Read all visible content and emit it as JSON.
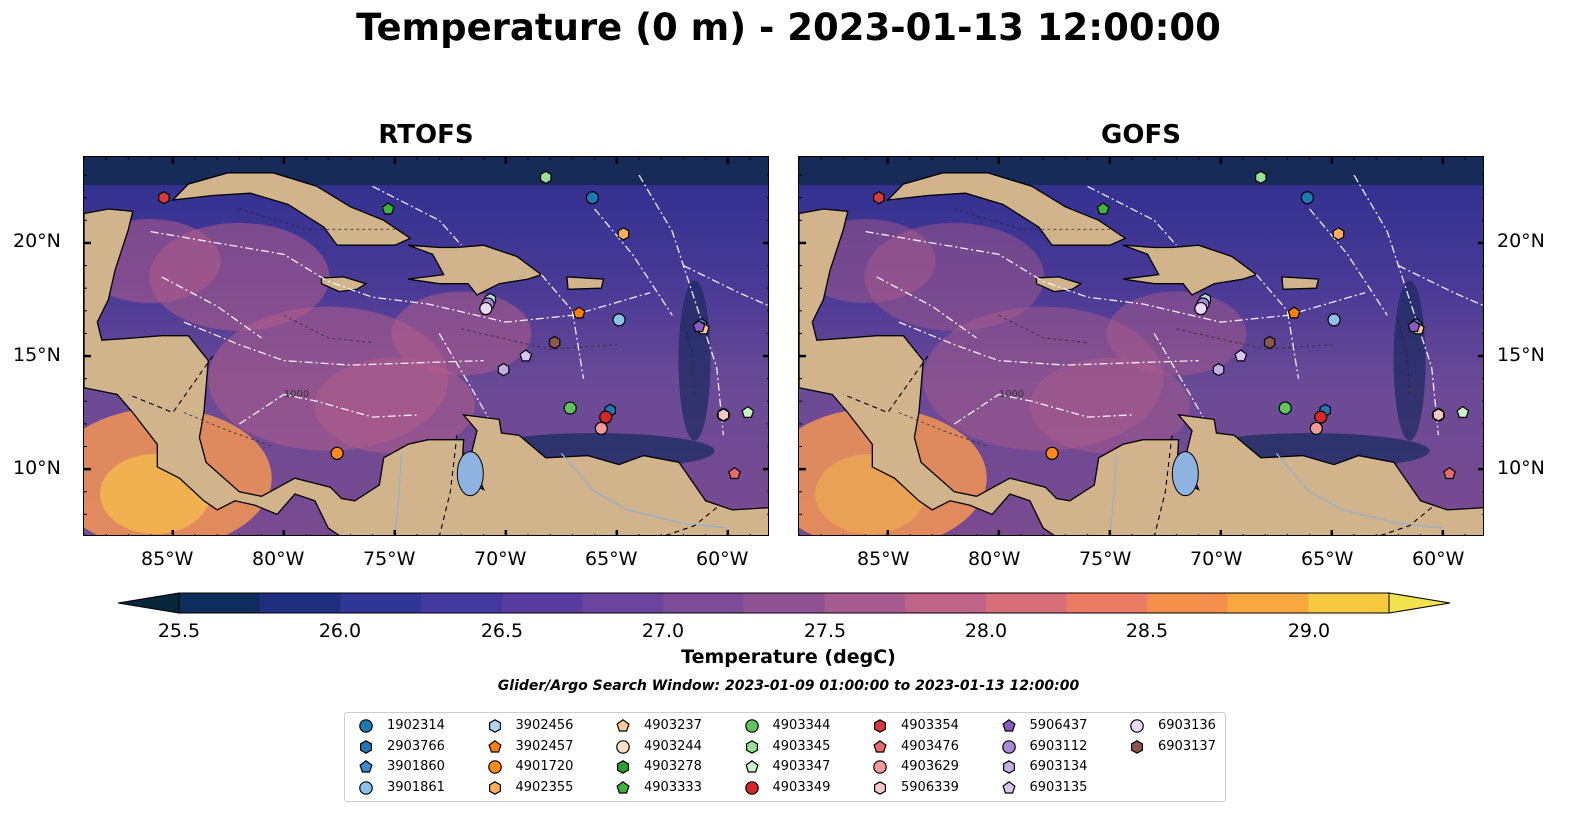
{
  "title": "Temperature (0 m) - 2023-01-13 12:00:00",
  "panels": [
    {
      "title": "RTOFS"
    },
    {
      "title": "GOFS"
    }
  ],
  "lon_ticks": [
    "85°W",
    "80°W",
    "75°W",
    "70°W",
    "65°W",
    "60°W"
  ],
  "lat_ticks": [
    "20°N",
    "15°N",
    "10°N"
  ],
  "contour_labels": [
    "1000"
  ],
  "colorbar": {
    "label": "Temperature (degC)",
    "ticks": [
      "25.5",
      "26.0",
      "26.5",
      "27.0",
      "27.5",
      "28.0",
      "28.5",
      "29.0"
    ],
    "min": 25.5,
    "max": 29.0,
    "extend": "both",
    "colors": [
      "#06263a",
      "#0f2d5c",
      "#1f2f7e",
      "#2f3696",
      "#43399f",
      "#563d9f",
      "#6a449d",
      "#7c4c98",
      "#8f5393",
      "#a55b8e",
      "#bd6487",
      "#d66f79",
      "#ea7c63",
      "#f58f4c",
      "#f9a73f",
      "#f7c940",
      "#f2e24c"
    ]
  },
  "search_window": "Glider/Argo Search Window: 2023-01-09 01:00:00 to 2023-01-13 12:00:00",
  "legend": [
    {
      "id": "1902314",
      "color": "#1f77b4",
      "marker": "circle"
    },
    {
      "id": "2903766",
      "color": "#1f77b4",
      "marker": "hexagon"
    },
    {
      "id": "3901860",
      "color": "#3a8ad0",
      "marker": "pentagon"
    },
    {
      "id": "3901861",
      "color": "#8ec1ea",
      "marker": "circle"
    },
    {
      "id": "3902456",
      "color": "#aed6f5",
      "marker": "hexagon"
    },
    {
      "id": "3902457",
      "color": "#ff7f0e",
      "marker": "pentagon"
    },
    {
      "id": "4901720",
      "color": "#ff8c1a",
      "marker": "circle"
    },
    {
      "id": "4902355",
      "color": "#ffae5c",
      "marker": "hexagon"
    },
    {
      "id": "4903237",
      "color": "#ffc89a",
      "marker": "pentagon"
    },
    {
      "id": "4903244",
      "color": "#ffe2c6",
      "marker": "circle"
    },
    {
      "id": "4903278",
      "color": "#2ca02c",
      "marker": "hexagon"
    },
    {
      "id": "4903333",
      "color": "#3cb53c",
      "marker": "pentagon"
    },
    {
      "id": "4903344",
      "color": "#5fc45f",
      "marker": "circle"
    },
    {
      "id": "4903345",
      "color": "#98e198",
      "marker": "hexagon"
    },
    {
      "id": "4903347",
      "color": "#c8f5c8",
      "marker": "pentagon"
    },
    {
      "id": "4903349",
      "color": "#d62728",
      "marker": "circle"
    },
    {
      "id": "4903354",
      "color": "#d63a3a",
      "marker": "hexagon"
    },
    {
      "id": "4903476",
      "color": "#e86b6b",
      "marker": "pentagon"
    },
    {
      "id": "4903629",
      "color": "#f29a9a",
      "marker": "circle"
    },
    {
      "id": "5906339",
      "color": "#f8c6c6",
      "marker": "hexagon"
    },
    {
      "id": "5906437",
      "color": "#8a5ac2",
      "marker": "pentagon"
    },
    {
      "id": "6903112",
      "color": "#a98ad8",
      "marker": "circle"
    },
    {
      "id": "6903134",
      "color": "#c3aee6",
      "marker": "hexagon"
    },
    {
      "id": "6903135",
      "color": "#d7c6f0",
      "marker": "pentagon"
    },
    {
      "id": "6903136",
      "color": "#ead9fa",
      "marker": "circle"
    },
    {
      "id": "6903137",
      "color": "#8c564b",
      "marker": "hexagon"
    }
  ],
  "floats": [
    {
      "id": "1902314",
      "lon": -66.1,
      "lat": 22.0
    },
    {
      "id": "2903766",
      "lon": -65.3,
      "lat": 12.6
    },
    {
      "id": "3901860",
      "lon": -61.2,
      "lat": 16.4
    },
    {
      "id": "3901861",
      "lon": -64.9,
      "lat": 16.6
    },
    {
      "id": "3902456",
      "lon": -70.7,
      "lat": 17.5
    },
    {
      "id": "3902457",
      "lon": -66.7,
      "lat": 16.9
    },
    {
      "id": "4901720",
      "lon": -77.6,
      "lat": 10.7
    },
    {
      "id": "4902355",
      "lon": -64.7,
      "lat": 20.4
    },
    {
      "id": "4903237",
      "lon": -61.1,
      "lat": 16.2
    },
    {
      "id": "4903244",
      "lon": -60.2,
      "lat": 12.4
    },
    {
      "id": "4903278",
      "lon": -68.2,
      "lat": 22.9
    },
    {
      "id": "4903333",
      "lon": -75.3,
      "lat": 21.5
    },
    {
      "id": "4903344",
      "lon": -67.1,
      "lat": 12.7
    },
    {
      "id": "4903345",
      "lon": -68.2,
      "lat": 22.9
    },
    {
      "id": "4903347",
      "lon": -59.1,
      "lat": 12.5
    },
    {
      "id": "4903349",
      "lon": -65.5,
      "lat": 12.3
    },
    {
      "id": "4903354",
      "lon": -85.4,
      "lat": 22.0
    },
    {
      "id": "4903476",
      "lon": -59.7,
      "lat": 9.8
    },
    {
      "id": "4903629",
      "lon": -65.7,
      "lat": 11.8
    },
    {
      "id": "5906339",
      "lon": -60.2,
      "lat": 12.4
    },
    {
      "id": "5906437",
      "lon": -61.3,
      "lat": 16.3
    },
    {
      "id": "6903112",
      "lon": -70.8,
      "lat": 17.3
    },
    {
      "id": "6903134",
      "lon": -70.1,
      "lat": 14.4
    },
    {
      "id": "6903135",
      "lon": -69.1,
      "lat": 15.0
    },
    {
      "id": "6903136",
      "lon": -70.9,
      "lat": 17.1
    },
    {
      "id": "6903137",
      "lon": -67.8,
      "lat": 15.6
    }
  ]
}
